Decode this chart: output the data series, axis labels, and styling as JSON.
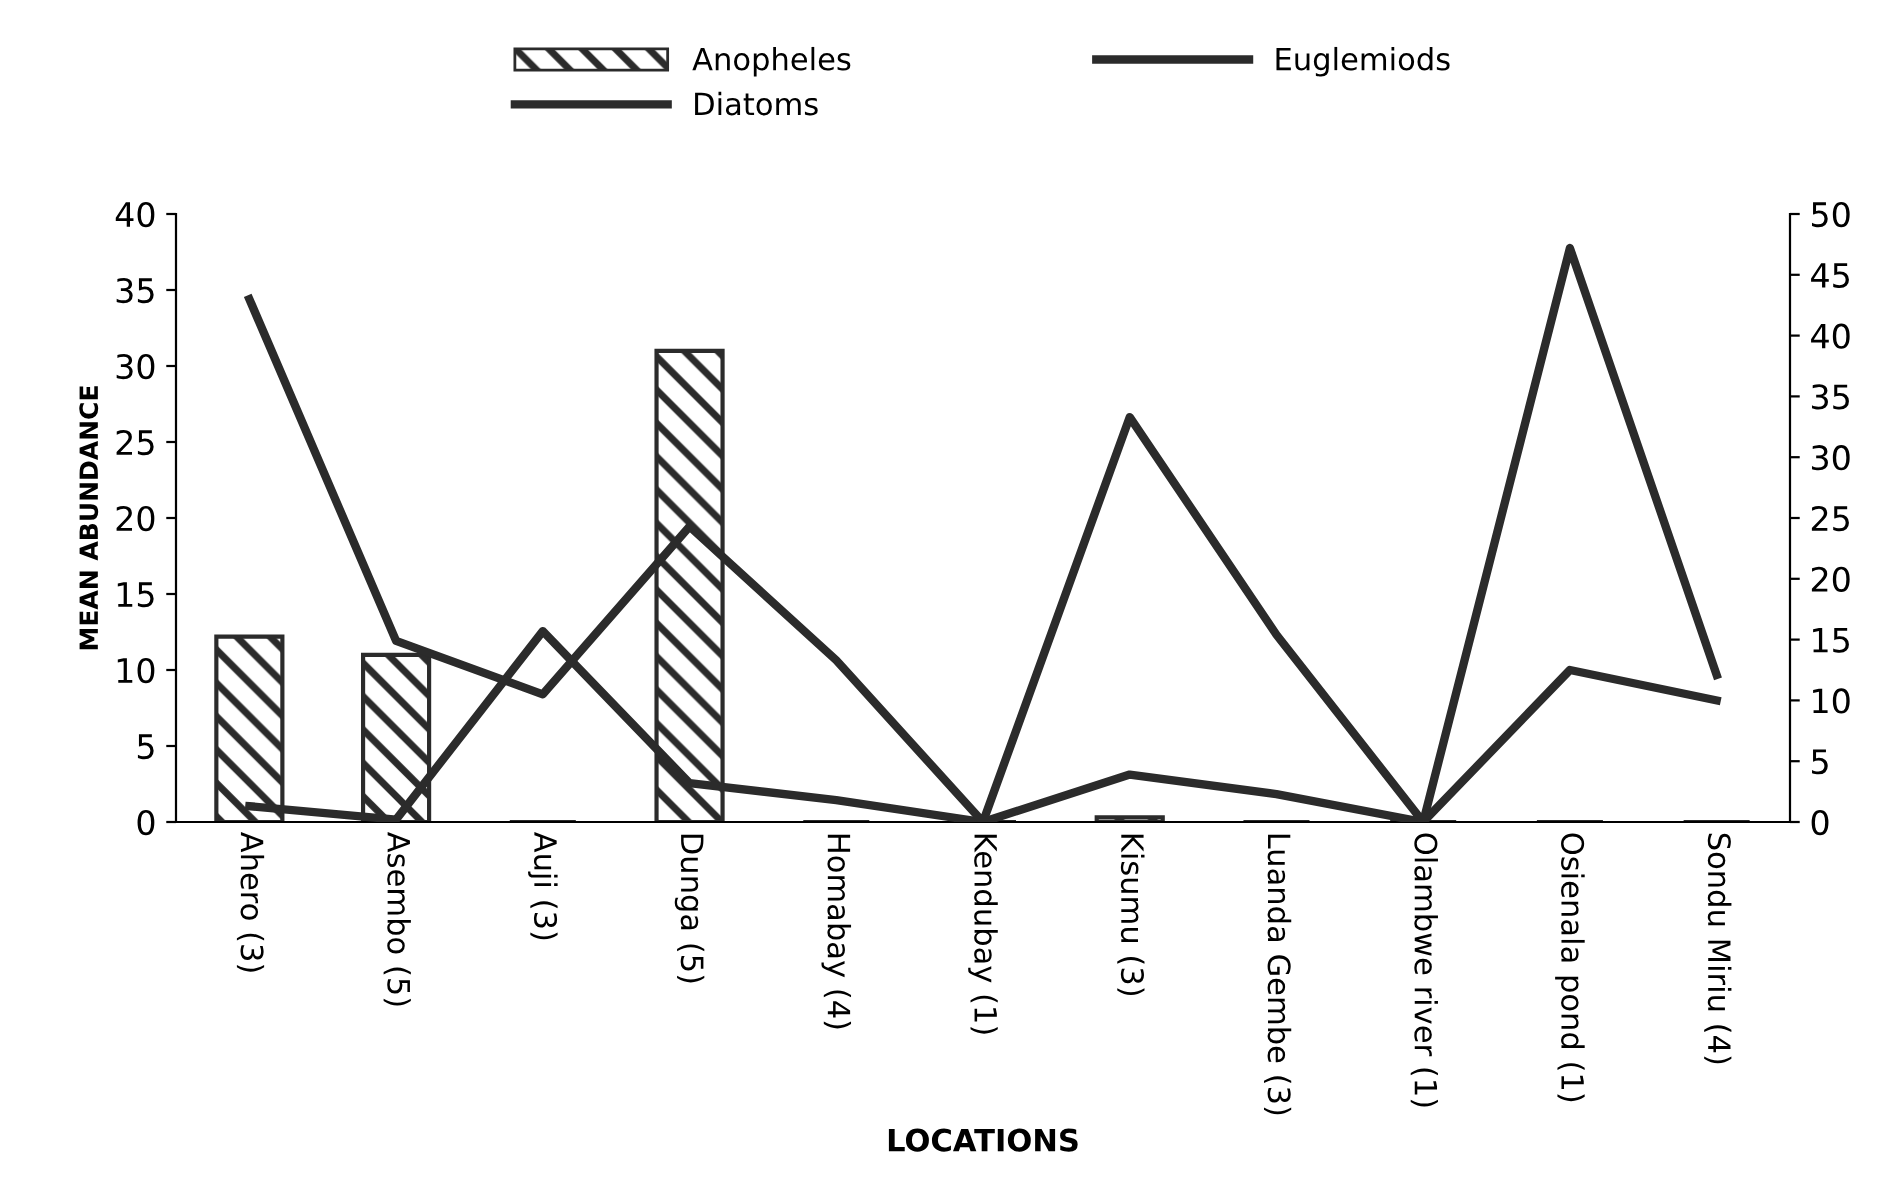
{
  "chart_data": {
    "type": "bar",
    "xlabel": "LOCATIONS",
    "ylabel": "MEAN ABUNDANCE",
    "categories": [
      "Ahero (3)",
      "Asembo (5)",
      "Auji (3)",
      "Dunga (5)",
      "Homabay (4)",
      "Kendubay (1)",
      "Kisumu (3)",
      "Luanda Gembe (3)",
      "Olambwe river (1)",
      "Osienala pond (1)",
      "Sondu Miriu (4)"
    ],
    "series": [
      {
        "name": "Anopheles",
        "color": "#2b2b2b",
        "values": [
          12.2,
          11,
          0,
          31,
          0,
          0,
          0.3,
          0,
          0,
          0,
          0
        ]
      },
      {
        "name": "Euglemiods",
        "type": "line",
        "axis": "y2",
        "color": "#2b2b2b",
        "values": [
          1.3,
          0.2,
          15.7,
          3.2,
          1.8,
          0,
          3.9,
          2.3,
          0,
          12.5,
          10
        ]
      },
      {
        "name": "Diatoms",
        "type": "line",
        "axis": "y2",
        "color": "#2b2b2b",
        "values": [
          43,
          14.9,
          10.5,
          24.3,
          13.3,
          0,
          33.3,
          15.4,
          0,
          47.2,
          12.1
        ]
      }
    ],
    "ylim": [
      0,
      40
    ],
    "yticks": [
      0,
      5,
      10,
      15,
      20,
      25,
      30,
      35,
      40
    ],
    "y2lim": [
      0,
      50
    ],
    "y2ticks": [
      0,
      5,
      10,
      15,
      20,
      25,
      30,
      35,
      40,
      45,
      50
    ],
    "grid": false,
    "legend": "top"
  }
}
